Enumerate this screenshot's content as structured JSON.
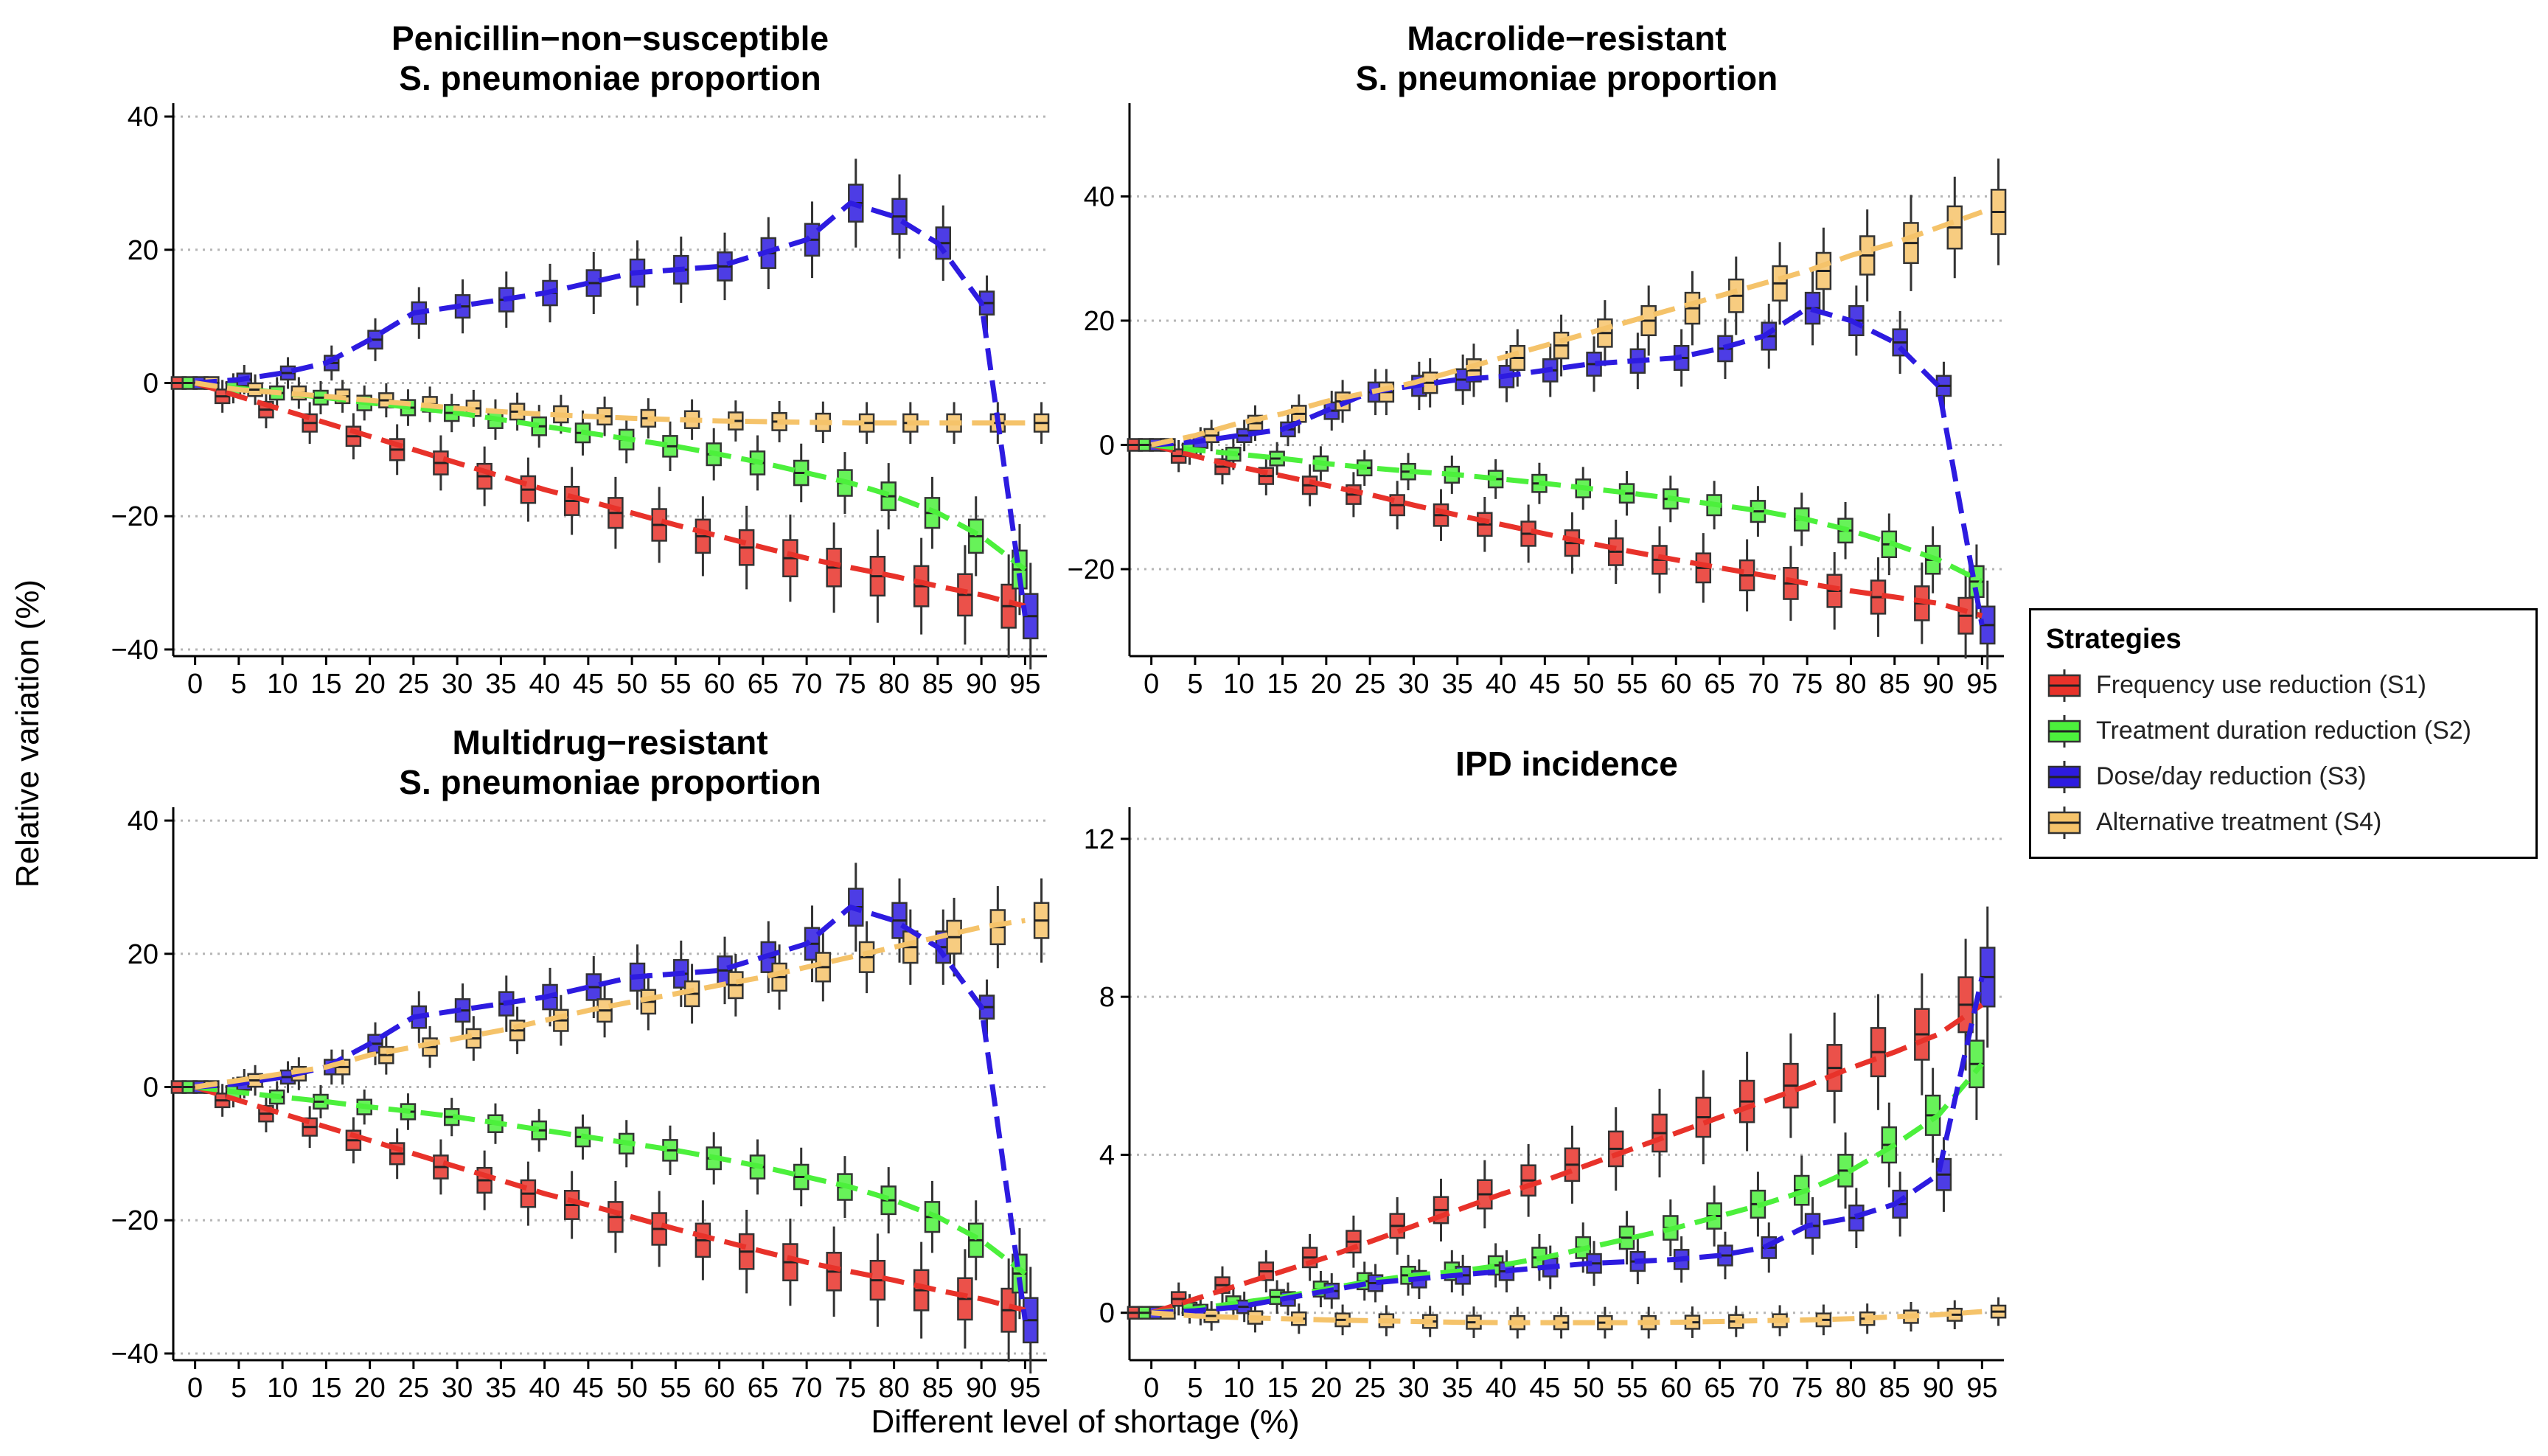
{
  "figure": {
    "ylabel": "Relative variation (%)",
    "xlabel": "Different level of shortage (%)"
  },
  "legend": {
    "title": "Strategies",
    "items": [
      {
        "label": "Frequency use reduction (S1)",
        "color": "#E8322A"
      },
      {
        "label": "Treatment duration reduction (S2)",
        "color": "#4CF03C"
      },
      {
        "label": "Dose/day reduction (S3)",
        "color": "#2D1BE0"
      },
      {
        "label": "Alternative treatment (S4)",
        "color": "#F5C36A"
      }
    ]
  },
  "chart_data": [
    {
      "type": "line",
      "title_lines": [
        "Penicillin−non−susceptible",
        "S. pneumoniae proportion"
      ],
      "x": [
        0,
        5,
        10,
        15,
        20,
        25,
        30,
        35,
        40,
        45,
        50,
        55,
        60,
        65,
        70,
        75,
        80,
        85,
        90,
        95
      ],
      "ylim": [
        -41,
        42
      ],
      "yticks": [
        -40,
        -20,
        0,
        20,
        40
      ],
      "ytick_labels": [
        "−40",
        "−20",
        "0",
        "20",
        "40"
      ],
      "grid": "horizontal dotted",
      "box_halfwidth": 0.8,
      "series": [
        {
          "name": "Frequency use reduction (S1)",
          "color": "#E8322A",
          "values": [
            0,
            -2,
            -4,
            -6,
            -8,
            -10,
            -12,
            -14,
            -16,
            -17.7,
            -19.5,
            -21.3,
            -23,
            -24.7,
            -26.3,
            -27.7,
            -29,
            -30.5,
            -31.8,
            -33.5
          ]
        },
        {
          "name": "Treatment duration reduction (S2)",
          "color": "#4CF03C",
          "values": [
            0,
            -0.8,
            -1.5,
            -2.2,
            -3,
            -3.7,
            -4.5,
            -5.5,
            -6.5,
            -7.5,
            -8.5,
            -9.5,
            -10.7,
            -12,
            -13.5,
            -15,
            -17,
            -19.5,
            -23,
            -28
          ]
        },
        {
          "name": "Dose/day reduction (S3)",
          "color": "#2D1BE0",
          "values": [
            0,
            0.5,
            1.5,
            3,
            6.5,
            10.5,
            11.5,
            12.5,
            13.5,
            15,
            16.5,
            17,
            17.5,
            19.5,
            21.5,
            27,
            25,
            21,
            12,
            -35
          ]
        },
        {
          "name": "Alternative treatment (S4)",
          "color": "#F5C36A",
          "values": [
            0,
            -1,
            -1.5,
            -2,
            -2.6,
            -3.2,
            -3.8,
            -4.3,
            -4.7,
            -5,
            -5.3,
            -5.5,
            -5.7,
            -5.8,
            -5.9,
            -6,
            -6,
            -6,
            -6,
            -6
          ]
        }
      ]
    },
    {
      "type": "line",
      "title_lines": [
        "Macrolide−resistant",
        "S. pneumoniae proportion"
      ],
      "x": [
        0,
        5,
        10,
        15,
        20,
        25,
        30,
        35,
        40,
        45,
        50,
        55,
        60,
        65,
        70,
        75,
        80,
        85,
        90,
        95
      ],
      "ylim": [
        -34,
        55
      ],
      "yticks": [
        -20,
        0,
        20,
        40
      ],
      "ytick_labels": [
        "−20",
        "0",
        "20",
        "40"
      ],
      "grid": "horizontal dotted",
      "box_halfwidth": 0.8,
      "series": [
        {
          "name": "Frequency use reduction (S1)",
          "color": "#E8322A",
          "values": [
            0,
            -1.8,
            -3.5,
            -5,
            -6.5,
            -8,
            -9.7,
            -11.3,
            -12.8,
            -14.3,
            -15.8,
            -17.2,
            -18.5,
            -19.8,
            -21,
            -22.3,
            -23.5,
            -24.5,
            -25.5,
            -27.5
          ]
        },
        {
          "name": "Treatment duration reduction (S2)",
          "color": "#4CF03C",
          "values": [
            0,
            -0.8,
            -1.5,
            -2.2,
            -3,
            -3.7,
            -4.3,
            -4.8,
            -5.5,
            -6.2,
            -7,
            -7.8,
            -8.7,
            -9.7,
            -10.7,
            -12,
            -13.8,
            -16,
            -18.5,
            -22
          ]
        },
        {
          "name": "Dose/day reduction (S3)",
          "color": "#2D1BE0",
          "values": [
            0,
            0.5,
            1.5,
            2.5,
            5.5,
            8.5,
            9.5,
            10.5,
            11,
            12,
            13,
            13.5,
            14,
            15.5,
            17.5,
            22,
            20,
            16.5,
            9.5,
            -29
          ]
        },
        {
          "name": "Alternative treatment (S4)",
          "color": "#F5C36A",
          "values": [
            0,
            1.5,
            3.5,
            5,
            7,
            8.5,
            10,
            12,
            14,
            16,
            18,
            20,
            22,
            24,
            26,
            28,
            30.5,
            32.5,
            35,
            37.5
          ]
        }
      ]
    },
    {
      "type": "line",
      "title_lines": [
        "Multidrug−resistant",
        "S. pneumoniae proportion"
      ],
      "x": [
        0,
        5,
        10,
        15,
        20,
        25,
        30,
        35,
        40,
        45,
        50,
        55,
        60,
        65,
        70,
        75,
        80,
        85,
        90,
        95
      ],
      "ylim": [
        -41,
        42
      ],
      "yticks": [
        -40,
        -20,
        0,
        20,
        40
      ],
      "ytick_labels": [
        "−40",
        "−20",
        "0",
        "20",
        "40"
      ],
      "grid": "horizontal dotted",
      "box_halfwidth": 0.8,
      "series": [
        {
          "name": "Frequency use reduction (S1)",
          "color": "#E8322A",
          "values": [
            0,
            -2,
            -4,
            -6,
            -8,
            -10,
            -12,
            -14,
            -16,
            -17.7,
            -19.5,
            -21.3,
            -23,
            -24.7,
            -26.3,
            -27.7,
            -29,
            -30.5,
            -31.8,
            -33.5
          ]
        },
        {
          "name": "Treatment duration reduction (S2)",
          "color": "#4CF03C",
          "values": [
            0,
            -0.8,
            -1.5,
            -2.2,
            -3,
            -3.7,
            -4.5,
            -5.5,
            -6.5,
            -7.5,
            -8.5,
            -9.5,
            -10.7,
            -12,
            -13.5,
            -15,
            -17,
            -19.5,
            -23,
            -28
          ]
        },
        {
          "name": "Dose/day reduction (S3)",
          "color": "#2D1BE0",
          "values": [
            0,
            0.5,
            1.5,
            3,
            6.5,
            10.5,
            11.5,
            12.5,
            13.5,
            15,
            16.5,
            17,
            17.5,
            19.5,
            21.5,
            27,
            25,
            21,
            12,
            -35
          ]
        },
        {
          "name": "Alternative treatment (S4)",
          "color": "#F5C36A",
          "values": [
            0,
            1,
            2,
            3,
            4.8,
            6,
            7.3,
            8.5,
            10,
            11.5,
            12.8,
            14,
            15.3,
            16.5,
            18,
            19.5,
            21,
            22.5,
            24,
            25
          ]
        }
      ]
    },
    {
      "type": "line",
      "title_lines": [
        "IPD incidence"
      ],
      "x": [
        0,
        5,
        10,
        15,
        20,
        25,
        30,
        35,
        40,
        45,
        50,
        55,
        60,
        65,
        70,
        75,
        80,
        85,
        90,
        95
      ],
      "ylim": [
        -1.2,
        12.8
      ],
      "yticks": [
        0,
        4,
        8,
        12
      ],
      "ytick_labels": [
        "0",
        "4",
        "8",
        "12"
      ],
      "grid": "horizontal dotted",
      "box_halfwidth": 0.8,
      "series": [
        {
          "name": "Frequency use reduction (S1)",
          "color": "#E8322A",
          "values": [
            0,
            0.35,
            0.7,
            1.05,
            1.4,
            1.8,
            2.2,
            2.6,
            3,
            3.35,
            3.75,
            4.15,
            4.55,
            4.95,
            5.35,
            5.75,
            6.2,
            6.6,
            7.05,
            7.8
          ]
        },
        {
          "name": "Treatment duration reduction (S2)",
          "color": "#4CF03C",
          "values": [
            0,
            0.1,
            0.25,
            0.4,
            0.6,
            0.8,
            0.95,
            1.05,
            1.2,
            1.4,
            1.65,
            1.9,
            2.15,
            2.45,
            2.75,
            3.1,
            3.6,
            4.25,
            5,
            6.3
          ]
        },
        {
          "name": "Dose/day reduction (S3)",
          "color": "#2D1BE0",
          "values": [
            0,
            0.05,
            0.15,
            0.35,
            0.55,
            0.75,
            0.85,
            0.95,
            1.05,
            1.15,
            1.25,
            1.3,
            1.35,
            1.45,
            1.65,
            2.2,
            2.4,
            2.75,
            3.5,
            8.5
          ]
        },
        {
          "name": "Alternative treatment (S4)",
          "color": "#F5C36A",
          "values": [
            0,
            -0.08,
            -0.12,
            -0.15,
            -0.18,
            -0.2,
            -0.22,
            -0.24,
            -0.25,
            -0.25,
            -0.25,
            -0.25,
            -0.24,
            -0.22,
            -0.2,
            -0.18,
            -0.15,
            -0.1,
            -0.05,
            0.03
          ]
        }
      ]
    }
  ]
}
